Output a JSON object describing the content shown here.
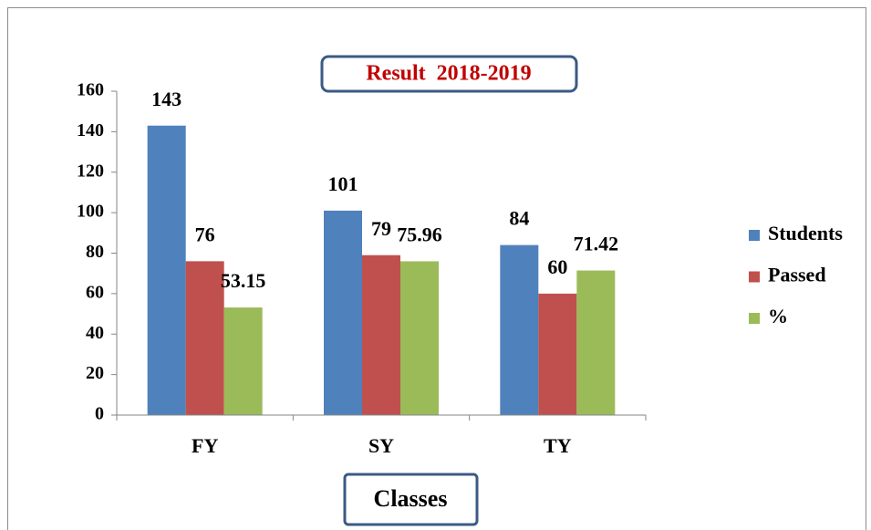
{
  "chart_data": {
    "type": "bar",
    "title": "Result  2018-2019",
    "x_label": "Classes",
    "categories": [
      "FY",
      "SY",
      "TY"
    ],
    "series": [
      {
        "name": "Students",
        "color": "#4f81bd",
        "values": [
          143,
          101,
          84
        ]
      },
      {
        "name": "Passed",
        "color": "#c0504d",
        "values": [
          76,
          79,
          60
        ]
      },
      {
        "name": "%",
        "color": "#9bbb59",
        "values": [
          53.15,
          75.96,
          71.42
        ]
      }
    ],
    "ylim": [
      0,
      160
    ],
    "yticks": [
      0,
      20,
      40,
      60,
      80,
      100,
      120,
      140,
      160
    ],
    "grid": false,
    "legend": "right"
  }
}
